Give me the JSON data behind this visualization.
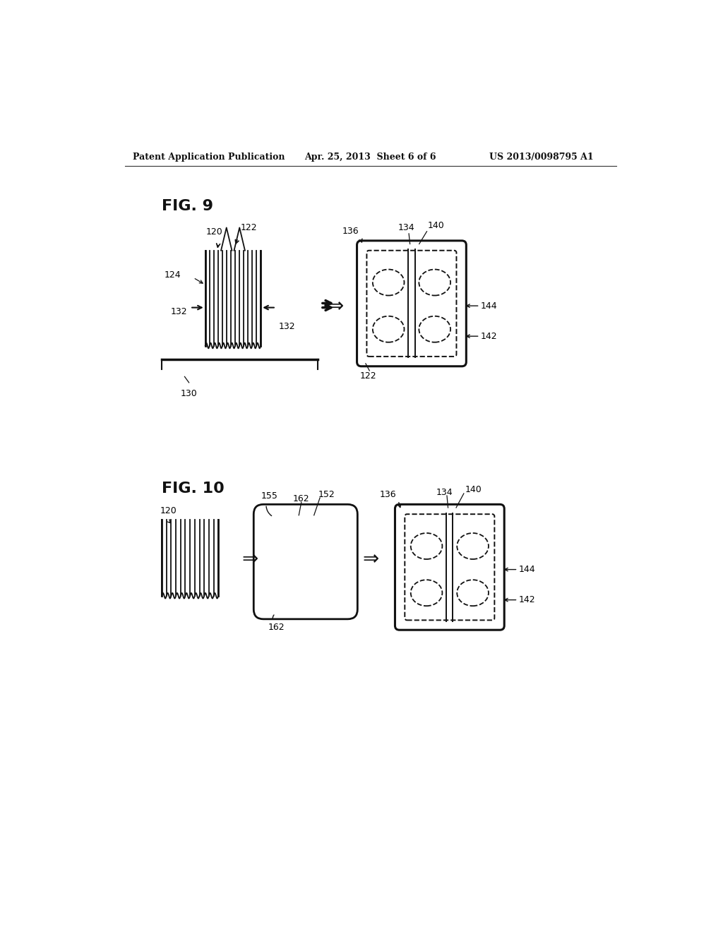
{
  "header_left": "Patent Application Publication",
  "header_center": "Apr. 25, 2013  Sheet 6 of 6",
  "header_right": "US 2013/0098795 A1",
  "bg_color": "#ffffff",
  "fig9_label": "FIG. 9",
  "fig10_label": "FIG. 10"
}
